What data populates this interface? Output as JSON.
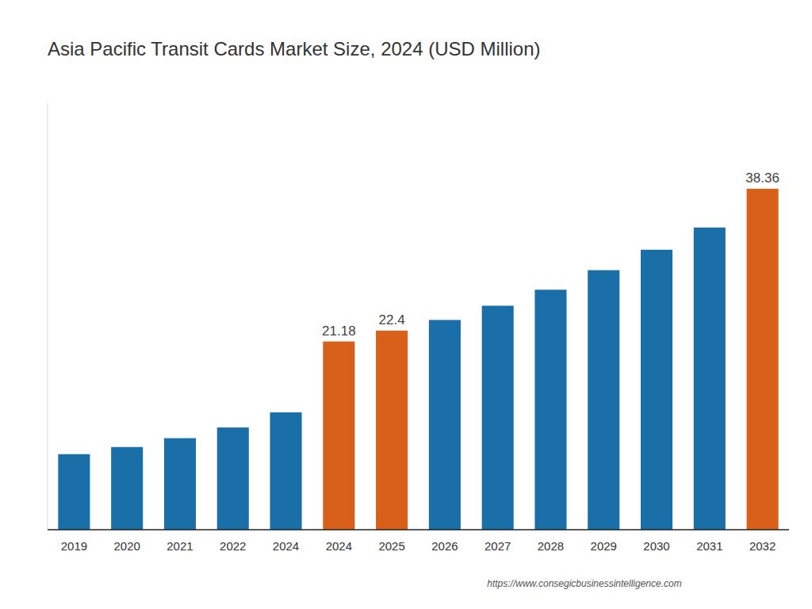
{
  "chart_data": {
    "type": "bar",
    "title": "Asia Pacific Transit Cards Market Size, 2024 (USD Million)",
    "categories": [
      "2019",
      "2020",
      "2021",
      "2022",
      "2024",
      "2024",
      "2025",
      "2026",
      "2027",
      "2028",
      "2029",
      "2030",
      "2031",
      "2032"
    ],
    "values": [
      8.5,
      9.3,
      10.3,
      11.5,
      13.2,
      21.18,
      22.4,
      23.6,
      25.2,
      27.0,
      29.2,
      31.5,
      34.0,
      38.36
    ],
    "value_labels": [
      null,
      null,
      null,
      null,
      null,
      "21.18",
      "22.4",
      null,
      null,
      null,
      null,
      null,
      null,
      "38.36"
    ],
    "colors": [
      "#1a6fa8",
      "#1a6fa8",
      "#1a6fa8",
      "#1a6fa8",
      "#1a6fa8",
      "#d9601a",
      "#d9601a",
      "#1a6fa8",
      "#1a6fa8",
      "#1a6fa8",
      "#1a6fa8",
      "#1a6fa8",
      "#1a6fa8",
      "#d9601a"
    ],
    "ylim": [
      0,
      48
    ],
    "grid": false,
    "tick_labels": "x",
    "annotations": [
      "https://www.consegicbusinessintelligence.com"
    ]
  }
}
